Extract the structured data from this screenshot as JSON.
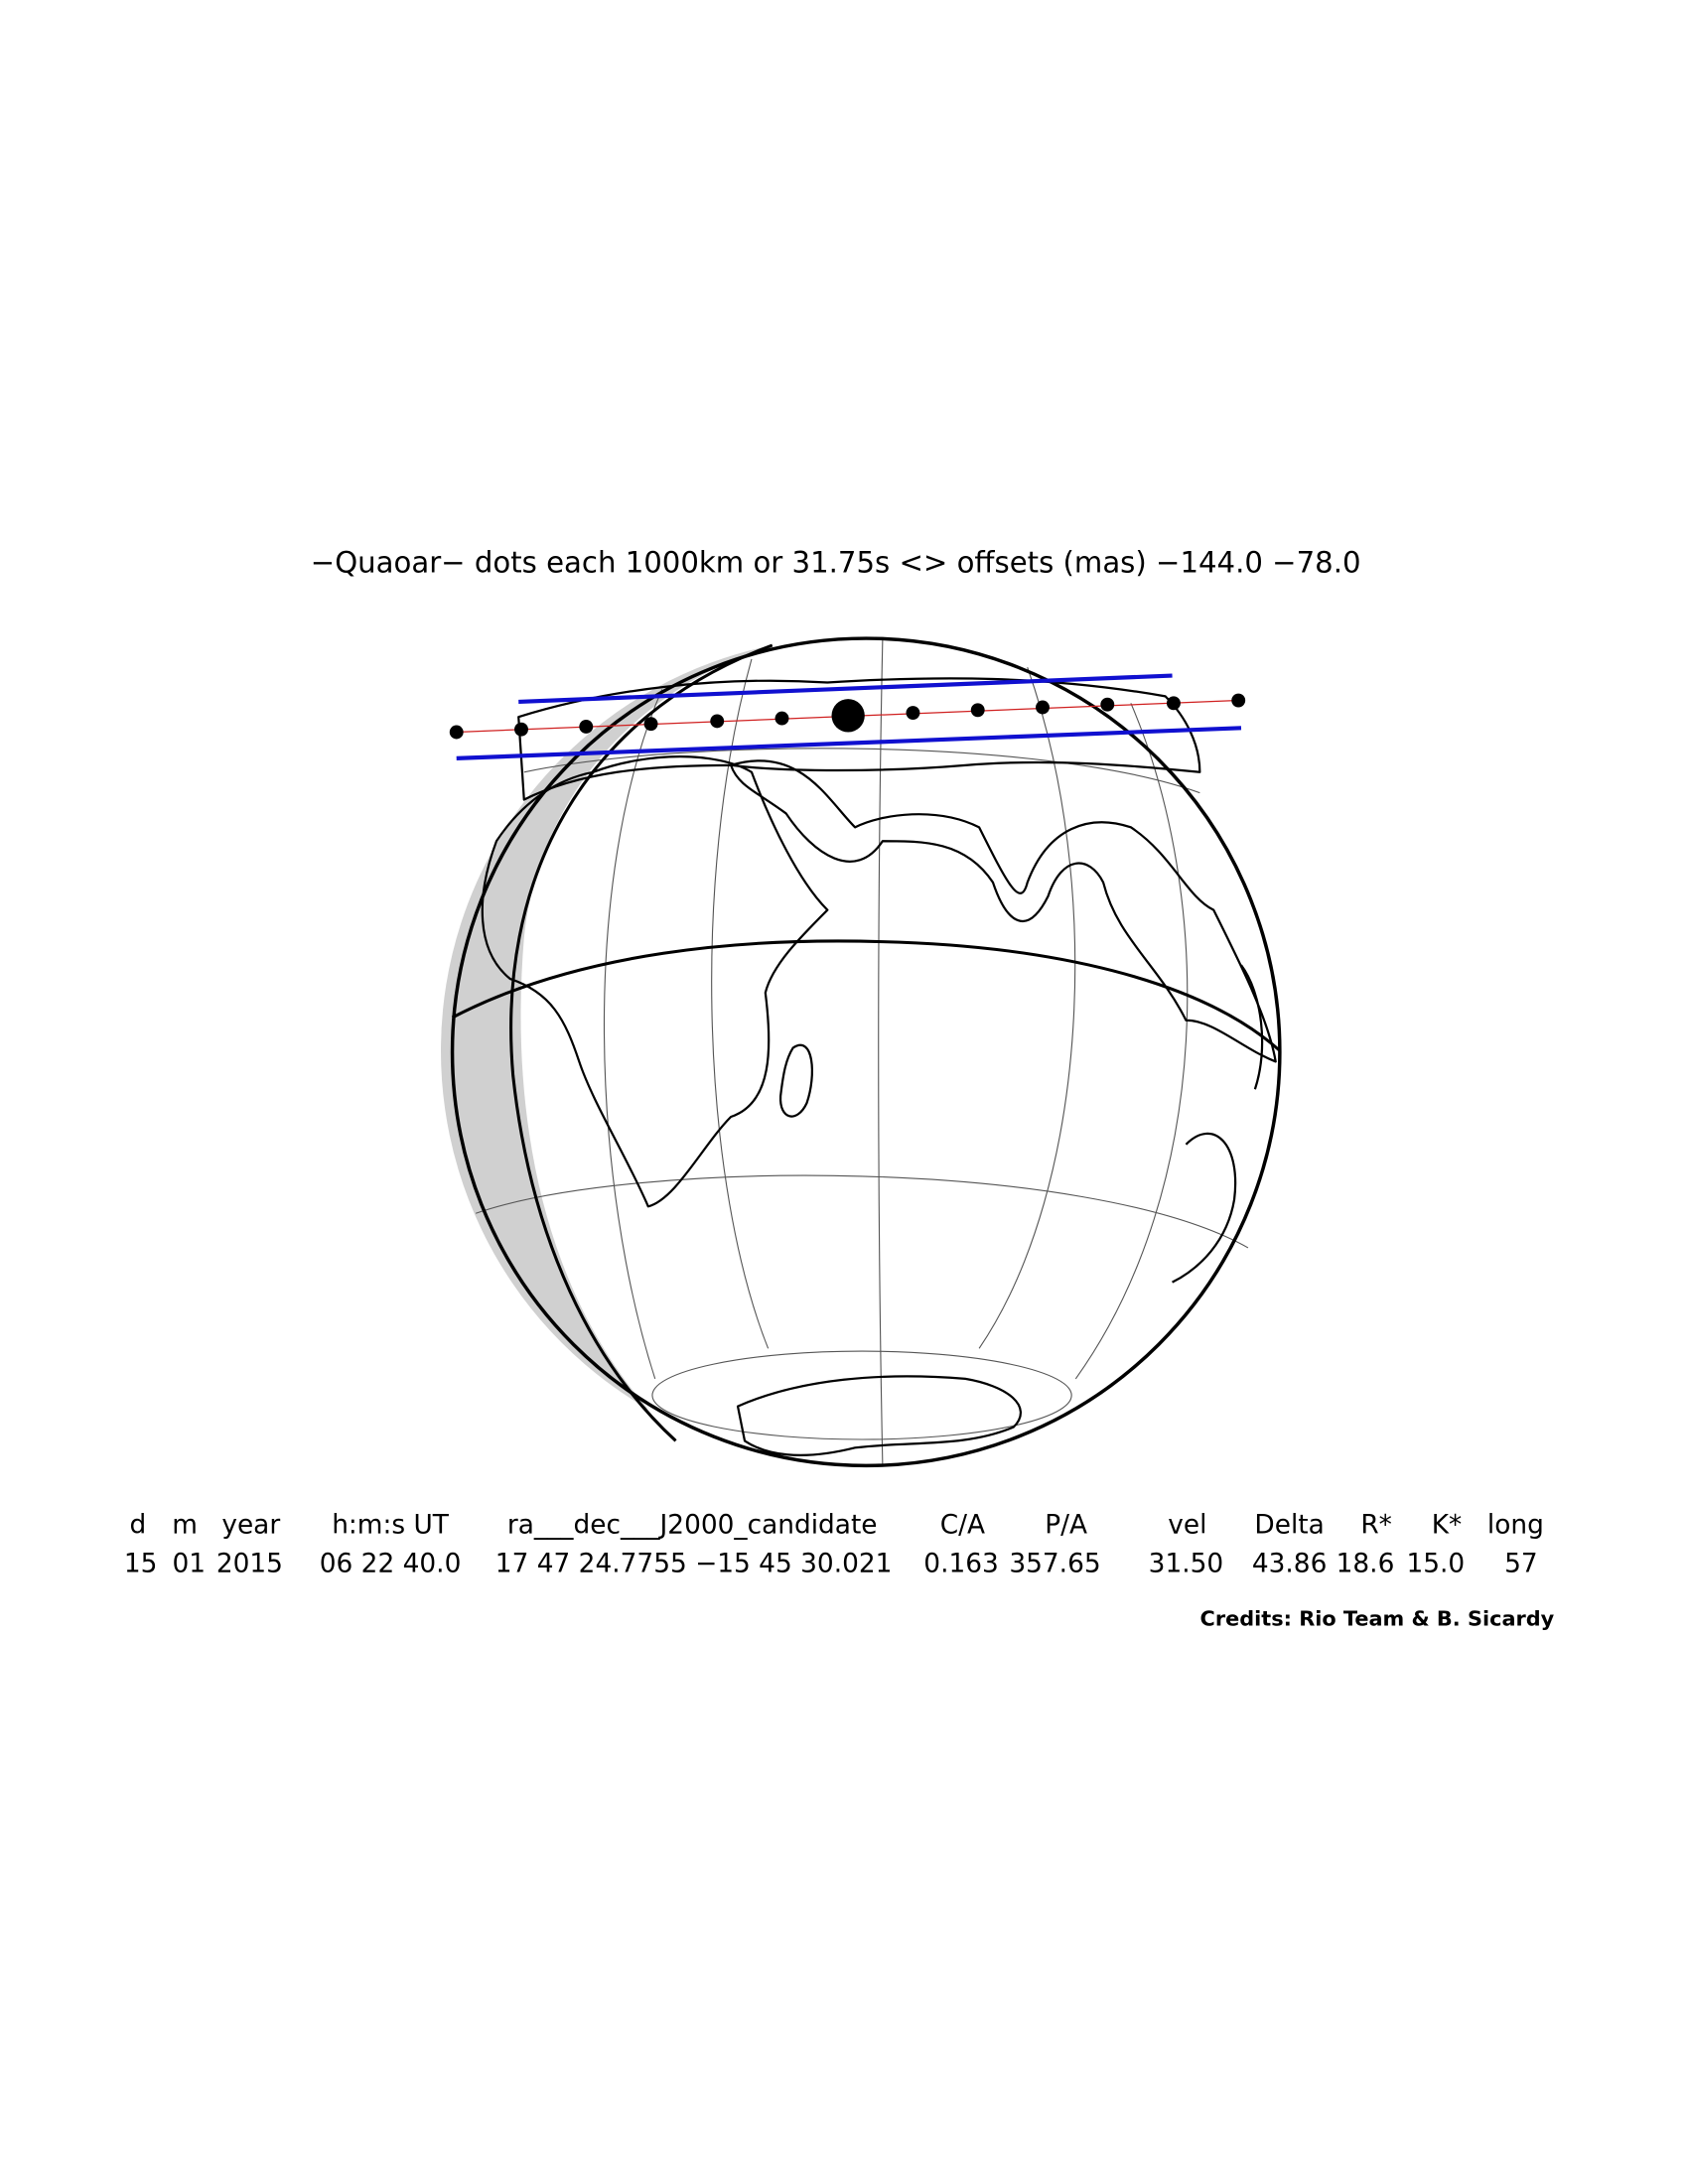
{
  "title": "−Quaoar− dots each 1000km or 31.75s <> offsets (mas) −144.0   −78.0",
  "table": {
    "headers": [
      "d",
      "m",
      "year",
      "h:m:s UT",
      "ra___dec___J2000_candidate",
      "C/A",
      "P/A",
      "vel",
      "Delta",
      "R*",
      "K*",
      "long"
    ],
    "values": [
      "15",
      "01",
      "2015",
      "06 22 40.0",
      "17 47 24.7755 −15 45 30.021",
      "0.163",
      "357.65",
      "31.50",
      "43.86",
      "18.6",
      "15.0",
      "57"
    ]
  },
  "credits": "Credits: Rio Team & B. Sicardy"
}
